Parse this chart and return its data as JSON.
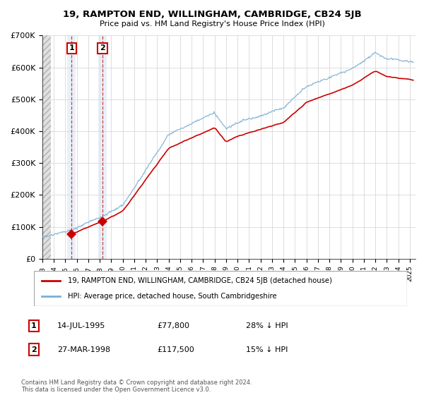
{
  "title": "19, RAMPTON END, WILLINGHAM, CAMBRIDGE, CB24 5JB",
  "subtitle": "Price paid vs. HM Land Registry's House Price Index (HPI)",
  "ylim": [
    0,
    700000
  ],
  "yticks": [
    0,
    100000,
    200000,
    300000,
    400000,
    500000,
    600000,
    700000
  ],
  "ytick_labels": [
    "£0",
    "£100K",
    "£200K",
    "£300K",
    "£400K",
    "£500K",
    "£600K",
    "£700K"
  ],
  "sale1_date": 1995.54,
  "sale1_price": 77800,
  "sale2_date": 1998.23,
  "sale2_price": 117500,
  "sale_color": "#cc0000",
  "hpi_color": "#7bafd4",
  "legend_line1": "19, RAMPTON END, WILLINGHAM, CAMBRIDGE, CB24 5JB (detached house)",
  "legend_line2": "HPI: Average price, detached house, South Cambridgeshire",
  "table_row1": [
    "1",
    "14-JUL-1995",
    "£77,800",
    "28% ↓ HPI"
  ],
  "table_row2": [
    "2",
    "27-MAR-1998",
    "£117,500",
    "15% ↓ HPI"
  ],
  "footer": "Contains HM Land Registry data © Crown copyright and database right 2024.\nThis data is licensed under the Open Government Licence v3.0.",
  "box_color": "#cc0000",
  "xmin": 1993,
  "xmax": 2025.5
}
